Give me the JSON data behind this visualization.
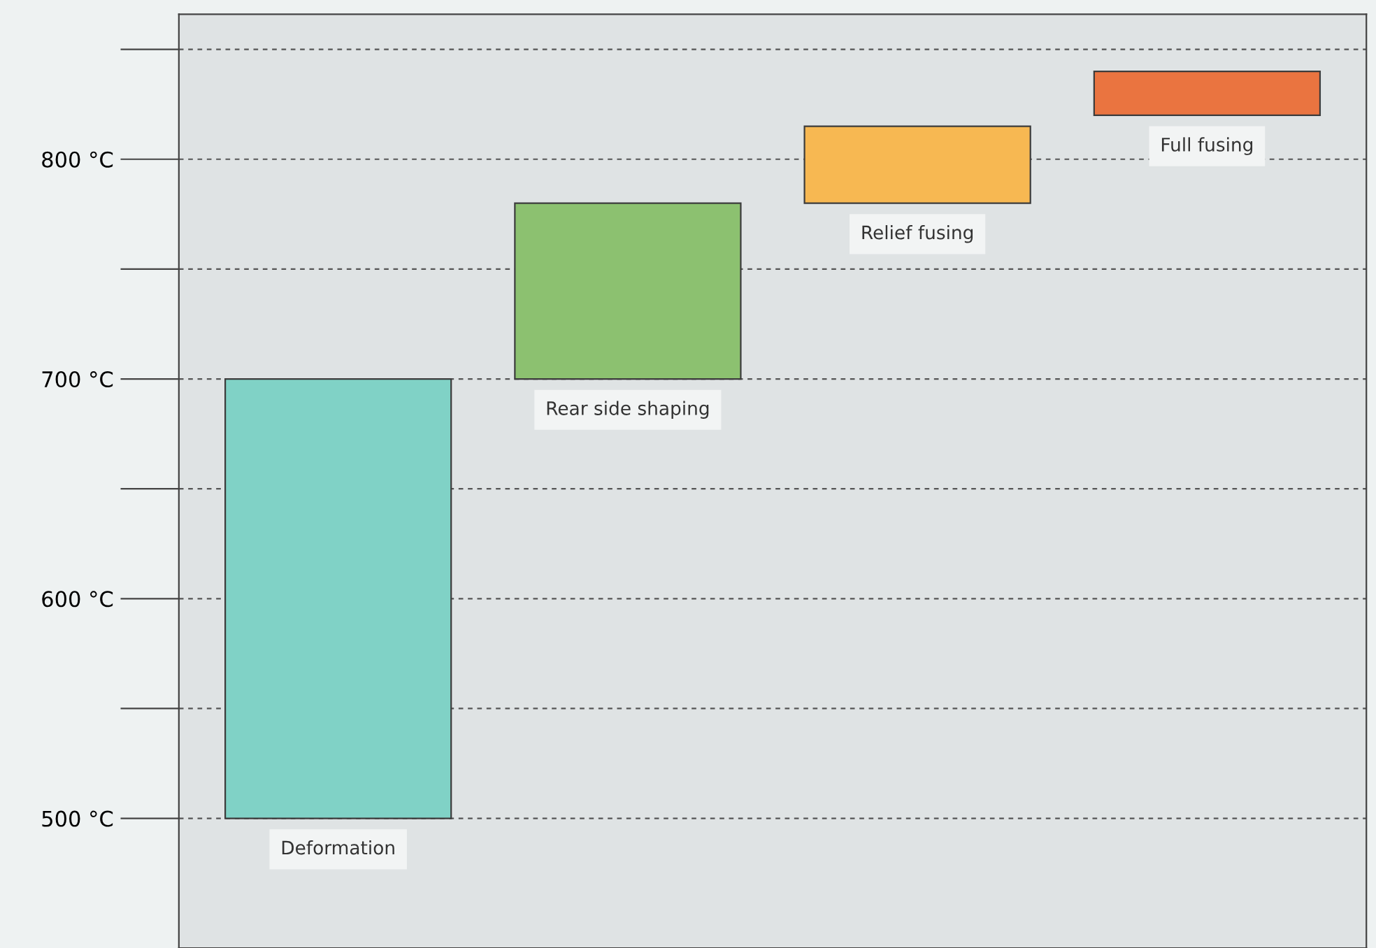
{
  "chart_data": {
    "type": "bar",
    "categories": [
      "Deformation",
      "Rear side shaping",
      "Relief fusing",
      "Full fusing"
    ],
    "base": [
      500,
      700,
      780,
      820
    ],
    "values": [
      200,
      80,
      35,
      20
    ],
    "colors": [
      "#80d2c6",
      "#8cc170",
      "#f7b852",
      "#ea7440"
    ],
    "ylim": [
      441,
      866
    ],
    "yticks": [
      {
        "value": 500,
        "label": "500 °C"
      },
      {
        "value": 550,
        "label": null
      },
      {
        "value": 600,
        "label": "600 °C"
      },
      {
        "value": 650,
        "label": null
      },
      {
        "value": 700,
        "label": "700 °C"
      },
      {
        "value": 750,
        "label": null
      },
      {
        "value": 800,
        "label": "800 °C"
      },
      {
        "value": 850,
        "label": null
      }
    ],
    "grid": "y",
    "tick_labels": "y"
  }
}
